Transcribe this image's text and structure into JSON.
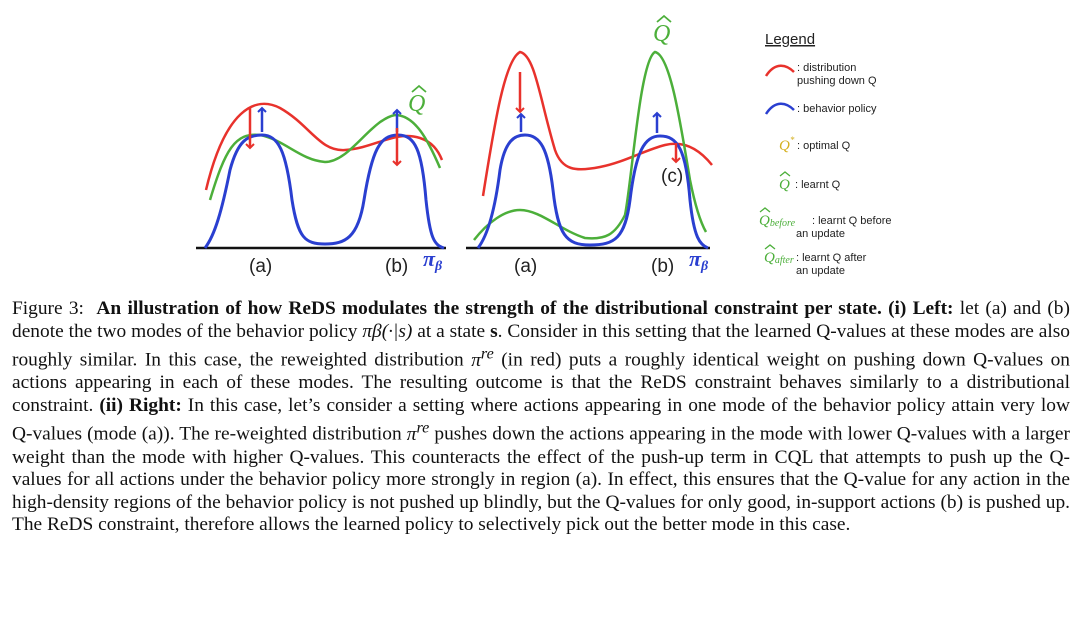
{
  "figure": {
    "left_panel": {
      "mode_a_label": "(a)",
      "mode_b_label": "(b)",
      "pi_label": "π",
      "pi_sub": "β",
      "qhat_label": "Q"
    },
    "right_panel": {
      "mode_a_label": "(a)",
      "mode_b_label": "(b)",
      "mode_c_label": "(c)",
      "pi_label": "π",
      "pi_sub": "β",
      "qhat_label": "Q"
    },
    "legend": {
      "title": "Legend",
      "red_line1": ": distribution",
      "red_line2": "pushing down Q",
      "blue": ": behavior policy",
      "qstar_symbol": "Q",
      "qstar_sup": "*",
      "qstar": ": optimal Q",
      "qhat_symbol": "Q",
      "qhat": ": learnt Q",
      "before_symbol": "Q",
      "before_sub": "before",
      "before_line1": ": learnt Q before",
      "before_line2": "an update",
      "after_symbol": "Q",
      "after_sub": "after",
      "after_line1": ": learnt Q after",
      "after_line2": "an update"
    },
    "colors": {
      "red": "#e8322c",
      "blue": "#2a3fd0",
      "green": "#4caf3a",
      "gold": "#d4b020"
    }
  },
  "caption": {
    "fig_label": "Figure 3:",
    "bold_title": "An illustration of how ReDS modulates the strength of the distributional constraint per state.",
    "left_label": "(i) Left:",
    "left_text_1": "let (a) and (b) denote the two modes of the behavior policy",
    "left_text_2": "at a state",
    "left_text_3": ". Consider in this setting that the learned Q-values at these modes are also roughly similar. In this case, the reweighted distribution",
    "left_text_4": "(in red) puts a roughly identical weight on pushing down Q-values on actions appearing in each of these modes. The resulting outcome is that the ReDS constraint behaves similarly to a distributional constraint.",
    "right_label": "(ii) Right:",
    "right_text_1": "In this case, let’s consider a setting where actions appearing in one mode of the behavior policy attain very low Q-values (mode (a)). The re-weighted distribution",
    "right_text_2": "pushes down the actions appearing in the mode with lower Q-values with a larger weight than the mode with higher Q-values. This counteracts the effect of the push-up term in CQL that attempts to push up the Q-values for all actions under the behavior policy more strongly in region (a). In effect, this ensures that the Q-value for any action in the high-density regions of the behavior policy is not pushed up blindly, but the Q-values for only good, in-support actions (b) is pushed up. The ReDS constraint, therefore allows the learned policy to selectively pick out the better mode in this case.",
    "math_pi_beta": "πβ(·|s)",
    "math_s": "s",
    "math_pi_re": "π",
    "math_re_sup": "re"
  }
}
